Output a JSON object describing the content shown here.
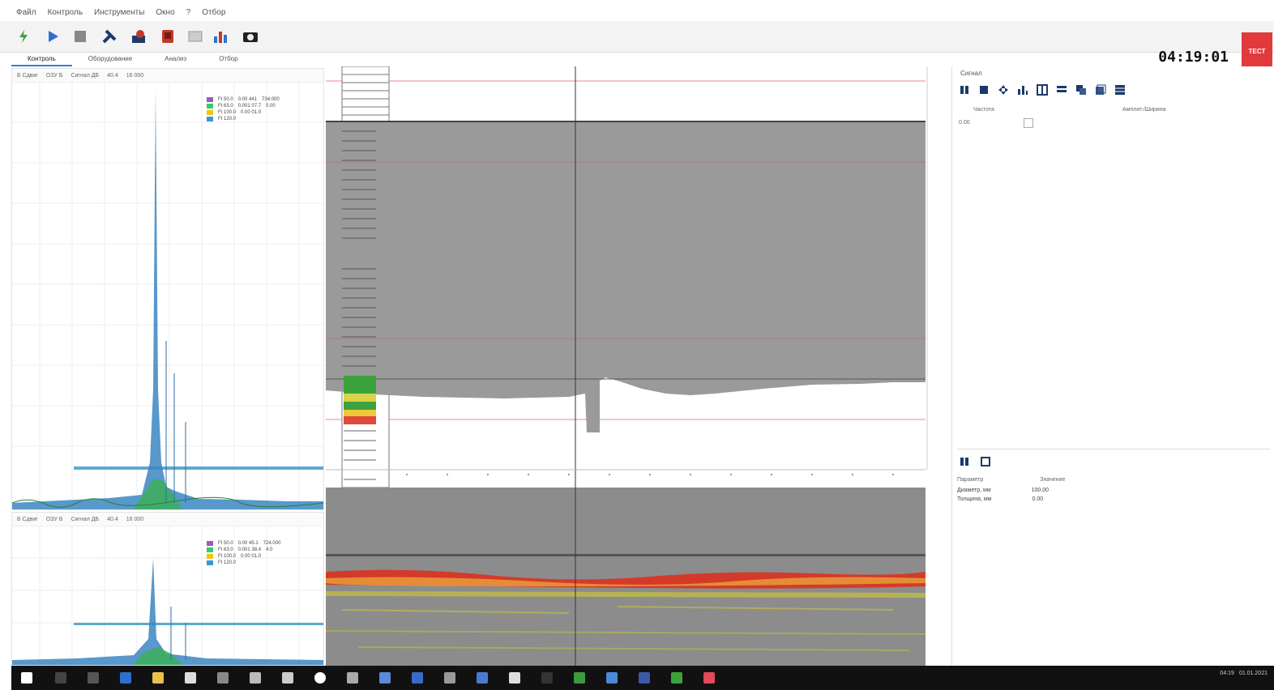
{
  "menu": [
    "Файл",
    "Контроль",
    "Инструменты",
    "Окно",
    "?",
    "Отбор"
  ],
  "toolbar": {
    "icons": [
      "power-icon",
      "play-icon",
      "stop-icon",
      "tools-icon",
      "settings-icon",
      "record-icon",
      "window-icon",
      "chart-icon",
      "camera-icon"
    ],
    "clock": "04:19:01",
    "logo_text": "ТЕСТ"
  },
  "tabs": [
    "Контроль",
    "Оборудование",
    "Анализ",
    "Отбор"
  ],
  "spectrum_top": {
    "header": [
      "Б Сдвиг",
      "ОЗУ Б",
      "Сигнал ДБ",
      "40.4",
      "16 000"
    ],
    "legend": [
      {
        "label": "Ft 50.0",
        "v1": "0.00 441",
        "v2": "734.000",
        "color": "#9b59b6"
      },
      {
        "label": "Ft 63.0",
        "v1": "0.001 07.7",
        "v2": "0.00",
        "color": "#2ecc71"
      },
      {
        "label": "Ft 100.0",
        "v1": "0.00 01.0",
        "v2": "",
        "color": "#f1c40f"
      },
      {
        "label": "Ft 120.0",
        "v1": "",
        "v2": "",
        "color": "#3498db"
      }
    ]
  },
  "spectrum_bottom": {
    "header": [
      "Б Сдвиг",
      "ОЗУ Б",
      "Сигнал ДБ",
      "40.4",
      "16 000"
    ],
    "legend": [
      {
        "label": "Ft 50.0",
        "v1": "0.00 45.1",
        "v2": "724.000",
        "color": "#9b59b6"
      },
      {
        "label": "Ft 63.0",
        "v1": "0.001 38.4",
        "v2": "4.0",
        "color": "#2ecc71"
      },
      {
        "label": "Ft 100.0",
        "v1": "0.00 01.0",
        "v2": "",
        "color": "#f1c40f"
      },
      {
        "label": "Ft 120.0",
        "v1": "",
        "v2": "",
        "color": "#3498db"
      }
    ]
  },
  "right_panel": {
    "title": "Сигнал",
    "tools": [
      "pause-icon",
      "stop2-icon",
      "move-icon",
      "bars-icon",
      "grid-icon",
      "list-icon",
      "copy-icon",
      "layers-icon",
      "table-icon"
    ],
    "col1": "Частота",
    "col2": "Амплит./Ширина",
    "row_label": "0.00",
    "props_header": [
      "Параметр",
      "Значение"
    ],
    "props": [
      {
        "name": "Диаметр, мм",
        "value": "100.00"
      },
      {
        "name": "Толщина, мм",
        "value": "0.00"
      }
    ]
  },
  "taskbar": {
    "tray_time": "04:19",
    "tray_date": "01.01.2021"
  }
}
